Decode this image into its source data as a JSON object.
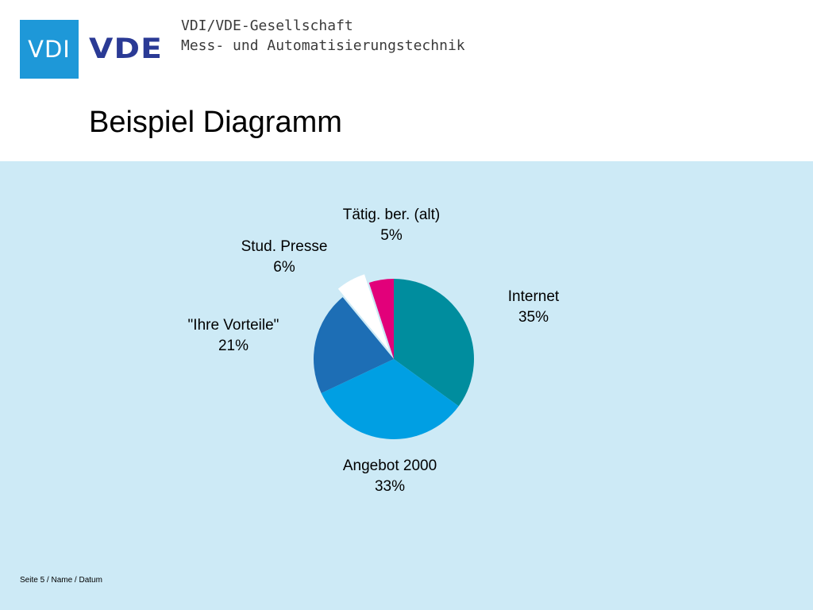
{
  "header": {
    "logo_vdi": "VDI",
    "logo_vde": "VDE",
    "org_line1": "VDI/VDE-Gesellschaft",
    "org_line2": "Mess- und Automatisierungstechnik",
    "colors": {
      "vdi_blue": "#1e98d8",
      "vde_blue": "#2a3a95"
    }
  },
  "slide": {
    "title": "Beispiel Diagramm",
    "background": "#cdeaf6",
    "footer": "Seite 5 / Name / Datum"
  },
  "chart_data": {
    "type": "pie",
    "title": "",
    "start_angle_deg": 0,
    "direction": "clockwise",
    "slices": [
      {
        "label": "Internet",
        "value": 35,
        "value_label": "35%",
        "color": "#008d9e",
        "exploded": false
      },
      {
        "label": "Angebot 2000",
        "value": 33,
        "value_label": "33%",
        "color": "#009fe3",
        "exploded": false
      },
      {
        "label": "\"Ihre Vorteile\"",
        "value": 21,
        "value_label": "21%",
        "color": "#1d6eb5",
        "exploded": false
      },
      {
        "label": "Stud. Presse",
        "value": 6,
        "value_label": "6%",
        "color": "#ffffff",
        "exploded": true
      },
      {
        "label": "Tätig. ber. (alt)",
        "value": 5,
        "value_label": "5%",
        "color": "#e2007a",
        "exploded": false
      }
    ]
  }
}
